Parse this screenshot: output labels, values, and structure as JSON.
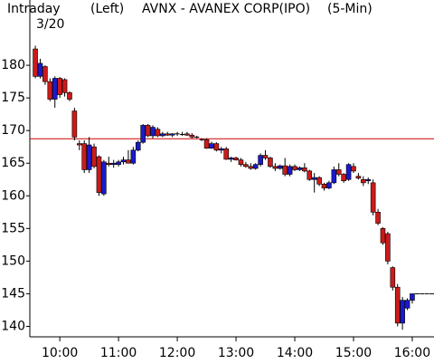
{
  "chart_data": {
    "type": "candlestick",
    "title": "AVNX - AVANEX CORP(IPO)",
    "subtitle": "(5-Min)",
    "header_left": "Intraday",
    "date": "3/20",
    "axis_side": "(Left)",
    "x": [
      9.5833,
      9.6667,
      9.75,
      9.8333,
      9.9167,
      10,
      10.0833,
      10.1667,
      10.25,
      10.3333,
      10.4167,
      10.5,
      10.5833,
      10.6667,
      10.75,
      10.8333,
      10.9167,
      11,
      11.0833,
      11.1667,
      11.25,
      11.3333,
      11.4167,
      11.5,
      11.5833,
      11.6667,
      11.75,
      11.8333,
      11.9167,
      12,
      12.0833,
      12.1667,
      12.25,
      12.3333,
      12.4167,
      12.5,
      12.5833,
      12.6667,
      12.75,
      12.8333,
      12.9167,
      13,
      13.0833,
      13.1667,
      13.25,
      13.3333,
      13.4167,
      13.5,
      13.5833,
      13.6667,
      13.75,
      13.8333,
      13.9167,
      14,
      14.0833,
      14.1667,
      14.25,
      14.3333,
      14.4167,
      14.5,
      14.5833,
      14.6667,
      14.75,
      14.8333,
      14.9167,
      15,
      15.0833,
      15.1667,
      15.25,
      15.3333,
      15.4167,
      15.5,
      15.5833,
      15.6667,
      15.75,
      15.8333,
      15.9167,
      16,
      16.0833,
      16.1667,
      16.25,
      16.3333
    ],
    "open": [
      182.5,
      178.3,
      179.8,
      177.5,
      174.8,
      178,
      177.8,
      175.8,
      173,
      168,
      168,
      164,
      167.5,
      166,
      160.3,
      165,
      164.8,
      164.8,
      165.2,
      165.5,
      165,
      167,
      168.2,
      170.8,
      169.2,
      170.2,
      169.2,
      169.5,
      169.3,
      169.5,
      169.4,
      169.5,
      169.3,
      169,
      168.6,
      168.6,
      167.3,
      168,
      167,
      167.2,
      165.6,
      165.8,
      165.5,
      164.8,
      164.5,
      164.2,
      164.8,
      166.2,
      165.8,
      164.5,
      164.2,
      164.6,
      163.3,
      164.5,
      164,
      164.3,
      163.8,
      162.5,
      162.8,
      161.8,
      161.2,
      162,
      164,
      163.3,
      162.5,
      164.5,
      163,
      162.5,
      162.3,
      162,
      157.5,
      155,
      154.2,
      149,
      146,
      140.5,
      142.8,
      144,
      145,
      145,
      145,
      145
    ],
    "high": [
      183,
      181,
      180,
      178,
      178.3,
      178.2,
      178,
      176,
      173.5,
      168.5,
      168.5,
      169,
      168,
      166.2,
      165.5,
      166,
      165.5,
      165.5,
      166,
      167,
      167.5,
      168.5,
      171,
      171,
      170.8,
      170.5,
      169.8,
      169.8,
      169.6,
      169.8,
      169.8,
      169.8,
      169.6,
      169.2,
      168.8,
      168.8,
      168.3,
      168.2,
      167.5,
      167.5,
      166,
      166,
      165.8,
      165.2,
      165,
      165,
      166.5,
      167,
      166,
      165,
      164.8,
      165.8,
      164.8,
      164.8,
      164.5,
      165,
      164,
      163.5,
      163,
      162,
      162.3,
      164.5,
      165,
      163.5,
      165,
      165,
      163.5,
      163,
      162.8,
      162.5,
      158,
      155.2,
      154.5,
      149.2,
      146.5,
      144.5,
      144.3,
      145,
      145,
      145,
      145,
      145
    ],
    "low": [
      178,
      178,
      177,
      174.5,
      173.5,
      175,
      175.2,
      174.5,
      168.5,
      167,
      163.5,
      163.5,
      164.2,
      160,
      160,
      164.5,
      164.3,
      164.5,
      164.8,
      165,
      164.8,
      166.8,
      168,
      169,
      168.8,
      169,
      169,
      169.2,
      169,
      169.2,
      169.2,
      169.2,
      168.8,
      168.8,
      168.4,
      167.2,
      167.2,
      166.8,
      166.5,
      165.5,
      165.2,
      165.4,
      164.5,
      164.3,
      164,
      164,
      164.5,
      165.5,
      164.3,
      163.8,
      164,
      163,
      163,
      163.8,
      163.8,
      163.6,
      162.3,
      160.5,
      161.5,
      160.8,
      161,
      161.8,
      163,
      162,
      162.3,
      163.5,
      162.5,
      161.5,
      161.8,
      157,
      155.5,
      152.5,
      149.5,
      145.5,
      140,
      139.5,
      142.5,
      143.5,
      145,
      145,
      145,
      145
    ],
    "close": [
      178.3,
      180.3,
      177.5,
      174.8,
      178,
      175.5,
      175.8,
      174.8,
      169,
      167.8,
      164,
      167.8,
      164.5,
      160.5,
      165.2,
      164.8,
      165,
      165.2,
      165.5,
      165,
      167,
      168.2,
      170.8,
      169.2,
      170.5,
      169.2,
      169.5,
      169.3,
      169.5,
      169.4,
      169.5,
      169.3,
      169,
      168.9,
      168.6,
      167.3,
      168,
      167,
      167.2,
      165.6,
      165.8,
      165.5,
      164.8,
      164.5,
      164.2,
      164.8,
      166.2,
      165.8,
      164.5,
      164.2,
      164.6,
      163.3,
      164.5,
      164,
      164.3,
      163.8,
      162.5,
      162.8,
      161.8,
      161.2,
      162,
      164,
      163.3,
      162.3,
      164.8,
      163.8,
      162.7,
      162,
      162.5,
      157.5,
      155.8,
      152.8,
      150,
      146,
      140.5,
      144,
      144,
      145,
      145,
      145,
      145,
      145
    ],
    "up_color": "#1a1acc",
    "down_color": "#cc1a1a",
    "doji_color": "#000000",
    "reference_line": 168.75,
    "reference_color": "#cc0000",
    "xlim": [
      9.49,
      16.37
    ],
    "ylim": [
      138.4,
      190
    ],
    "xticks": [
      {
        "value": 10,
        "label": "10:00"
      },
      {
        "value": 11,
        "label": "11:00"
      },
      {
        "value": 12,
        "label": "12:00"
      },
      {
        "value": 13,
        "label": "13:00"
      },
      {
        "value": 14,
        "label": "14:00"
      },
      {
        "value": 15,
        "label": "15:00"
      },
      {
        "value": 16,
        "label": "16:00"
      }
    ],
    "yticks": [
      140,
      145,
      150,
      155,
      160,
      165,
      170,
      175,
      180
    ]
  }
}
